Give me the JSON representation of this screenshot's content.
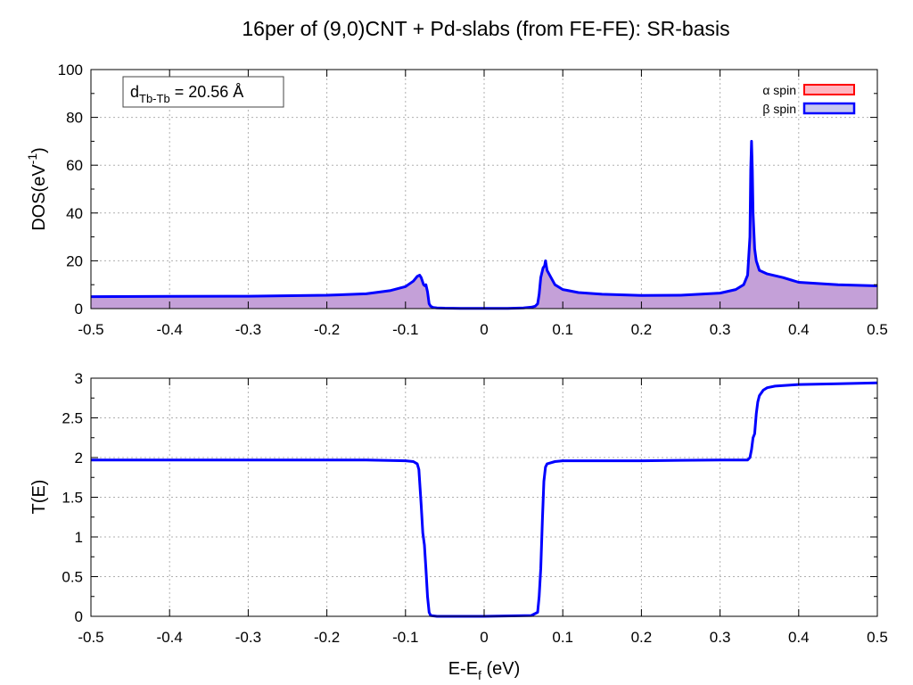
{
  "title": "16per of (9,0)CNT + Pd-slabs (from FE-FE): SR-basis",
  "annotation": {
    "main": "d",
    "sub": "Tb-Tb",
    "rest": " = 20.56 Å"
  },
  "colors": {
    "alpha_line": "#ff0000",
    "alpha_fill": "#ffb6c1",
    "beta_line": "#0000ff",
    "beta_fill": "#c8c8f0",
    "overlap_fill": "#c4a0d8",
    "grid": "#b0b0b0"
  },
  "chart_data": [
    {
      "type": "area",
      "ylabel": {
        "main": "DOS(eV",
        "sup": "-1",
        "end": ")"
      },
      "xlim": [
        -0.5,
        0.5
      ],
      "ylim": [
        0,
        100
      ],
      "xticks": [
        "-0.5",
        "-0.4",
        "-0.3",
        "-0.2",
        "-0.1",
        "0",
        "0.1",
        "0.2",
        "0.3",
        "0.4",
        "0.5"
      ],
      "yticks": [
        "0",
        "20",
        "40",
        "60",
        "80",
        "100"
      ],
      "grid": true,
      "legend_position": "top-right",
      "legend": [
        "α spin",
        "β spin"
      ],
      "series": [
        {
          "name": "α spin",
          "x": [
            -0.5,
            -0.4,
            -0.3,
            -0.2,
            -0.15,
            -0.12,
            -0.1,
            -0.09,
            -0.085,
            -0.082,
            -0.08,
            -0.077,
            -0.075,
            -0.074,
            -0.072,
            -0.07,
            -0.068,
            -0.065,
            -0.06,
            -0.05,
            -0.03,
            0,
            0.03,
            0.05,
            0.06,
            0.065,
            0.068,
            0.07,
            0.072,
            0.075,
            0.077,
            0.078,
            0.08,
            0.085,
            0.09,
            0.1,
            0.12,
            0.15,
            0.2,
            0.25,
            0.3,
            0.32,
            0.33,
            0.335,
            0.338,
            0.339,
            0.34,
            0.341,
            0.342,
            0.344,
            0.346,
            0.35,
            0.36,
            0.38,
            0.4,
            0.45,
            0.5
          ],
          "y": [
            5,
            5.1,
            5.2,
            5.6,
            6.2,
            7.5,
            9.2,
            11.5,
            13.5,
            14,
            13,
            10,
            9.5,
            10,
            7,
            2,
            1,
            0.5,
            0.3,
            0.2,
            0.1,
            0.1,
            0.1,
            0.3,
            0.6,
            1,
            2,
            6,
            13,
            17,
            18,
            20,
            16,
            13,
            10,
            8,
            6.7,
            6,
            5.5,
            5.6,
            6.5,
            8,
            10,
            14,
            30,
            58,
            70,
            58,
            40,
            25,
            20,
            16,
            14.5,
            13,
            11,
            10,
            9.5
          ]
        },
        {
          "name": "β spin",
          "x": [
            -0.5,
            -0.4,
            -0.3,
            -0.2,
            -0.15,
            -0.12,
            -0.1,
            -0.09,
            -0.085,
            -0.082,
            -0.08,
            -0.077,
            -0.075,
            -0.074,
            -0.072,
            -0.07,
            -0.068,
            -0.065,
            -0.06,
            -0.05,
            -0.03,
            0,
            0.03,
            0.05,
            0.06,
            0.065,
            0.068,
            0.07,
            0.072,
            0.075,
            0.077,
            0.078,
            0.08,
            0.085,
            0.09,
            0.1,
            0.12,
            0.15,
            0.2,
            0.25,
            0.3,
            0.32,
            0.33,
            0.335,
            0.338,
            0.339,
            0.34,
            0.341,
            0.342,
            0.344,
            0.346,
            0.35,
            0.36,
            0.38,
            0.4,
            0.45,
            0.5
          ],
          "y": [
            5,
            5.1,
            5.2,
            5.6,
            6.2,
            7.5,
            9.2,
            11.5,
            13.5,
            14,
            13,
            10,
            9.5,
            10,
            7,
            2,
            1,
            0.5,
            0.3,
            0.2,
            0.1,
            0.1,
            0.1,
            0.3,
            0.6,
            1,
            2,
            6,
            13,
            17,
            18,
            20,
            16,
            13,
            10,
            8,
            6.7,
            6,
            5.5,
            5.6,
            6.5,
            8,
            10,
            14,
            30,
            58,
            70,
            58,
            40,
            25,
            20,
            16,
            14.5,
            13,
            11,
            10,
            9.5
          ]
        }
      ]
    },
    {
      "type": "line",
      "ylabel": "T(E)",
      "xlabel": {
        "main": "E-E",
        "sub": "f",
        "end": " (eV)"
      },
      "xlim": [
        -0.5,
        0.5
      ],
      "ylim": [
        0,
        3
      ],
      "xticks": [
        "-0.5",
        "-0.4",
        "-0.3",
        "-0.2",
        "-0.1",
        "0",
        "0.1",
        "0.2",
        "0.3",
        "0.4",
        "0.5"
      ],
      "yticks": [
        "0",
        "0.5",
        "1",
        "1.5",
        "2",
        "2.5",
        "3"
      ],
      "grid": true,
      "series": [
        {
          "x": [
            -0.5,
            -0.3,
            -0.15,
            -0.1,
            -0.09,
            -0.085,
            -0.083,
            -0.08,
            -0.078,
            -0.076,
            -0.074,
            -0.072,
            -0.07,
            -0.068,
            -0.06,
            0,
            0.06,
            0.068,
            0.07,
            0.072,
            0.074,
            0.076,
            0.078,
            0.08,
            0.09,
            0.1,
            0.15,
            0.2,
            0.3,
            0.335,
            0.338,
            0.34,
            0.342,
            0.344,
            0.346,
            0.348,
            0.35,
            0.355,
            0.36,
            0.37,
            0.4,
            0.45,
            0.5
          ],
          "y": [
            1.97,
            1.97,
            1.97,
            1.96,
            1.95,
            1.92,
            1.85,
            1.4,
            1.05,
            0.9,
            0.6,
            0.25,
            0.05,
            0.01,
            0,
            0,
            0.01,
            0.05,
            0.25,
            0.6,
            1.2,
            1.7,
            1.88,
            1.92,
            1.95,
            1.96,
            1.96,
            1.96,
            1.97,
            1.97,
            2.0,
            2.1,
            2.25,
            2.3,
            2.55,
            2.7,
            2.78,
            2.85,
            2.88,
            2.9,
            2.92,
            2.93,
            2.94
          ]
        }
      ]
    }
  ]
}
